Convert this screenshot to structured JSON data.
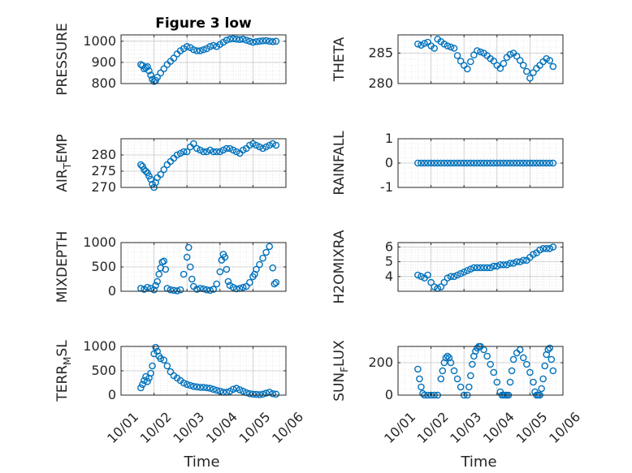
{
  "chart_data": [
    {
      "type": "scatter",
      "title": "Figure 3 low",
      "ylabel": "PRESSURE",
      "ylim": [
        800,
        1030
      ],
      "yticks": [
        800,
        900,
        1000
      ],
      "xlim": [
        "10/01",
        "10/06"
      ],
      "grid": true,
      "marker": "o",
      "color": "#0072BD",
      "x_days": [
        0.6,
        0.65,
        0.7,
        0.75,
        0.8,
        0.85,
        0.9,
        0.95,
        1.0,
        1.05,
        1.1,
        1.2,
        1.3,
        1.4,
        1.5,
        1.6,
        1.7,
        1.8,
        1.9,
        2.0,
        2.1,
        2.2,
        2.3,
        2.4,
        2.5,
        2.6,
        2.7,
        2.8,
        2.9,
        3.0,
        3.1,
        3.2,
        3.3,
        3.4,
        3.5,
        3.6,
        3.7,
        3.8,
        3.9,
        4.0,
        4.1,
        4.2,
        4.3,
        4.4,
        4.5,
        4.6,
        4.7
      ],
      "y": [
        890,
        885,
        870,
        875,
        880,
        860,
        840,
        820,
        810,
        815,
        830,
        850,
        870,
        890,
        905,
        920,
        940,
        955,
        965,
        975,
        970,
        960,
        955,
        955,
        960,
        965,
        975,
        980,
        975,
        985,
        995,
        1005,
        1010,
        1012,
        1010,
        1008,
        1010,
        1005,
        1000,
        995,
        998,
        1000,
        1002,
        1003,
        1000,
        998,
        1000
      ]
    },
    {
      "type": "scatter",
      "ylabel": "THETA",
      "ylim": [
        280,
        288
      ],
      "yticks": [
        280,
        285
      ],
      "xlim": [
        "10/01",
        "10/06"
      ],
      "grid": true,
      "marker": "o",
      "color": "#0072BD",
      "x_days": [
        0.6,
        0.7,
        0.8,
        0.9,
        1.0,
        1.1,
        1.2,
        1.3,
        1.4,
        1.5,
        1.6,
        1.7,
        1.8,
        1.9,
        2.0,
        2.1,
        2.2,
        2.3,
        2.4,
        2.5,
        2.6,
        2.7,
        2.8,
        2.9,
        3.0,
        3.1,
        3.2,
        3.3,
        3.4,
        3.5,
        3.6,
        3.7,
        3.8,
        3.9,
        4.0,
        4.1,
        4.2,
        4.3,
        4.4,
        4.5,
        4.6,
        4.7
      ],
      "y": [
        286.5,
        286.3,
        286.6,
        286.8,
        286.2,
        285.8,
        287.3,
        286.9,
        286.5,
        286.2,
        286.0,
        285.8,
        284.6,
        283.7,
        283.0,
        282.4,
        283.6,
        284.7,
        285.4,
        285.2,
        285.0,
        284.6,
        284.1,
        283.7,
        283.0,
        282.5,
        283.3,
        284.3,
        284.8,
        285.0,
        284.5,
        283.8,
        283.0,
        282.0,
        280.9,
        281.8,
        282.5,
        283.0,
        283.6,
        284.1,
        283.8,
        282.8
      ]
    },
    {
      "type": "scatter",
      "ylabel": "AIR_TEMP",
      "ylim": [
        270,
        285
      ],
      "yticks": [
        270,
        275,
        280
      ],
      "xlim": [
        "10/01",
        "10/06"
      ],
      "grid": true,
      "marker": "o",
      "color": "#0072BD",
      "x_days": [
        0.6,
        0.65,
        0.7,
        0.75,
        0.8,
        0.85,
        0.9,
        0.95,
        1.0,
        1.05,
        1.1,
        1.2,
        1.3,
        1.4,
        1.5,
        1.6,
        1.7,
        1.8,
        1.9,
        2.0,
        2.1,
        2.2,
        2.3,
        2.4,
        2.5,
        2.6,
        2.7,
        2.8,
        2.9,
        3.0,
        3.1,
        3.2,
        3.3,
        3.4,
        3.5,
        3.6,
        3.7,
        3.8,
        3.9,
        4.0,
        4.1,
        4.2,
        4.3,
        4.4,
        4.5,
        4.6,
        4.7
      ],
      "y": [
        277.0,
        276.5,
        275.5,
        275.0,
        274.5,
        273.5,
        272.5,
        271.0,
        270.0,
        271.5,
        273.0,
        274.0,
        275.5,
        277.0,
        278.0,
        279.0,
        280.0,
        280.5,
        281.0,
        281.0,
        282.5,
        283.5,
        282.0,
        281.5,
        281.0,
        281.0,
        281.5,
        281.0,
        281.0,
        281.0,
        281.5,
        282.0,
        282.0,
        281.5,
        281.0,
        280.5,
        281.5,
        282.0,
        283.0,
        283.5,
        283.0,
        282.5,
        282.0,
        282.5,
        283.0,
        283.5,
        283.0
      ]
    },
    {
      "type": "scatter",
      "ylabel": "RAINFALL",
      "ylim": [
        -1,
        1
      ],
      "yticks": [
        -1,
        0,
        1
      ],
      "xlim": [
        "10/01",
        "10/06"
      ],
      "grid": true,
      "marker": "o",
      "color": "#0072BD",
      "x_days": [
        0.6,
        0.7,
        0.8,
        0.9,
        1.0,
        1.1,
        1.2,
        1.3,
        1.4,
        1.5,
        1.6,
        1.7,
        1.8,
        1.9,
        2.0,
        2.1,
        2.2,
        2.3,
        2.4,
        2.5,
        2.6,
        2.7,
        2.8,
        2.9,
        3.0,
        3.1,
        3.2,
        3.3,
        3.4,
        3.5,
        3.6,
        3.7,
        3.8,
        3.9,
        4.0,
        4.1,
        4.2,
        4.3,
        4.4,
        4.5,
        4.6,
        4.7
      ],
      "y": [
        0,
        0,
        0,
        0,
        0,
        0,
        0,
        0,
        0,
        0,
        0,
        0,
        0,
        0,
        0,
        0,
        0,
        0,
        0,
        0,
        0,
        0,
        0,
        0,
        0,
        0,
        0,
        0,
        0,
        0,
        0,
        0,
        0,
        0,
        0,
        0,
        0,
        0,
        0,
        0,
        0,
        0
      ]
    },
    {
      "type": "scatter",
      "ylabel": "MIXDEPTH",
      "ylim": [
        0,
        1000
      ],
      "yticks": [
        0,
        500,
        1000
      ],
      "xlim": [
        "10/01",
        "10/06"
      ],
      "grid": true,
      "marker": "o",
      "color": "#0072BD",
      "x_days": [
        0.6,
        0.7,
        0.8,
        0.9,
        1.0,
        1.05,
        1.1,
        1.15,
        1.2,
        1.25,
        1.3,
        1.35,
        1.4,
        1.5,
        1.6,
        1.7,
        1.8,
        1.9,
        2.0,
        2.05,
        2.1,
        2.15,
        2.2,
        2.3,
        2.4,
        2.5,
        2.6,
        2.7,
        2.8,
        2.9,
        3.0,
        3.05,
        3.1,
        3.15,
        3.2,
        3.25,
        3.3,
        3.4,
        3.5,
        3.6,
        3.7,
        3.8,
        3.9,
        4.0,
        4.05,
        4.1,
        4.2,
        4.3,
        4.4,
        4.5,
        4.6,
        4.65,
        4.7
      ],
      "y": [
        60,
        40,
        80,
        60,
        30,
        120,
        200,
        350,
        480,
        600,
        620,
        450,
        60,
        30,
        20,
        10,
        30,
        350,
        700,
        900,
        500,
        250,
        100,
        40,
        60,
        50,
        30,
        20,
        40,
        150,
        400,
        640,
        760,
        700,
        450,
        200,
        120,
        80,
        50,
        60,
        80,
        100,
        180,
        300,
        350,
        450,
        550,
        680,
        800,
        920,
        480,
        150,
        180
      ]
    },
    {
      "type": "scatter",
      "ylabel": "H2OMIXRA",
      "ylim": [
        3,
        6.3
      ],
      "yticks": [
        4,
        5,
        6
      ],
      "xlim": [
        "10/01",
        "10/06"
      ],
      "grid": true,
      "marker": "o",
      "color": "#0072BD",
      "x_days": [
        0.6,
        0.7,
        0.8,
        0.9,
        1.0,
        1.1,
        1.2,
        1.3,
        1.4,
        1.5,
        1.6,
        1.7,
        1.8,
        1.9,
        2.0,
        2.1,
        2.2,
        2.3,
        2.4,
        2.5,
        2.6,
        2.7,
        2.8,
        2.9,
        3.0,
        3.1,
        3.2,
        3.3,
        3.4,
        3.5,
        3.6,
        3.7,
        3.8,
        3.9,
        4.0,
        4.1,
        4.2,
        4.3,
        4.4,
        4.5,
        4.6,
        4.7
      ],
      "y": [
        4.1,
        4.0,
        3.9,
        4.1,
        3.6,
        3.3,
        3.2,
        3.3,
        3.6,
        3.9,
        4.0,
        4.0,
        4.1,
        4.2,
        4.3,
        4.4,
        4.5,
        4.6,
        4.6,
        4.6,
        4.6,
        4.6,
        4.6,
        4.7,
        4.7,
        4.8,
        4.8,
        4.8,
        4.9,
        4.9,
        5.0,
        5.0,
        5.1,
        5.1,
        5.3,
        5.5,
        5.6,
        5.8,
        5.9,
        5.9,
        5.9,
        6.0
      ]
    },
    {
      "type": "scatter",
      "ylabel": "TERR_MSL",
      "ylim": [
        0,
        1000
      ],
      "yticks": [
        0,
        500,
        1000
      ],
      "xlim": [
        "10/01",
        "10/06"
      ],
      "grid": true,
      "marker": "o",
      "color": "#0072BD",
      "x_days": [
        0.6,
        0.65,
        0.7,
        0.75,
        0.8,
        0.85,
        0.9,
        0.95,
        1.0,
        1.05,
        1.1,
        1.15,
        1.2,
        1.3,
        1.4,
        1.5,
        1.6,
        1.7,
        1.8,
        1.9,
        2.0,
        2.1,
        2.2,
        2.3,
        2.4,
        2.5,
        2.6,
        2.7,
        2.8,
        2.9,
        3.0,
        3.1,
        3.2,
        3.3,
        3.4,
        3.5,
        3.6,
        3.7,
        3.8,
        3.9,
        4.0,
        4.1,
        4.2,
        4.3,
        4.4,
        4.5,
        4.6,
        4.7
      ],
      "y": [
        150,
        220,
        300,
        380,
        280,
        350,
        450,
        600,
        850,
        980,
        900,
        800,
        750,
        720,
        600,
        480,
        400,
        350,
        300,
        250,
        220,
        200,
        180,
        170,
        160,
        160,
        150,
        140,
        120,
        100,
        80,
        60,
        60,
        80,
        120,
        140,
        110,
        80,
        50,
        30,
        20,
        15,
        10,
        20,
        40,
        60,
        30,
        20
      ]
    },
    {
      "type": "scatter",
      "ylabel": "SUN_FLUX",
      "ylim": [
        0,
        300
      ],
      "yticks": [
        0,
        200
      ],
      "xlim": [
        "10/01",
        "10/06"
      ],
      "grid": true,
      "marker": "o",
      "color": "#0072BD",
      "x_days": [
        0.6,
        0.65,
        0.7,
        0.75,
        0.8,
        0.9,
        1.0,
        1.1,
        1.2,
        1.3,
        1.35,
        1.4,
        1.45,
        1.5,
        1.55,
        1.6,
        1.7,
        1.8,
        1.9,
        2.0,
        2.1,
        2.15,
        2.2,
        2.25,
        2.3,
        2.35,
        2.4,
        2.45,
        2.5,
        2.6,
        2.7,
        2.8,
        2.9,
        3.0,
        3.1,
        3.15,
        3.2,
        3.25,
        3.3,
        3.35,
        3.4,
        3.45,
        3.5,
        3.6,
        3.7,
        3.8,
        3.9,
        4.0,
        4.1,
        4.15,
        4.2,
        4.25,
        4.3,
        4.35,
        4.4,
        4.45,
        4.5,
        4.55,
        4.6,
        4.65,
        4.7
      ],
      "y": [
        160,
        100,
        50,
        10,
        0,
        0,
        0,
        0,
        0,
        100,
        150,
        200,
        230,
        240,
        230,
        200,
        150,
        100,
        50,
        0,
        0,
        50,
        120,
        190,
        240,
        270,
        290,
        300,
        300,
        280,
        240,
        190,
        140,
        80,
        20,
        0,
        0,
        0,
        0,
        0,
        80,
        150,
        220,
        260,
        280,
        230,
        190,
        140,
        80,
        20,
        0,
        0,
        0,
        40,
        100,
        180,
        250,
        280,
        290,
        220,
        150
      ]
    }
  ],
  "x_ticklabels": [
    "10/01",
    "10/02",
    "10/03",
    "10/04",
    "10/05",
    "10/06"
  ],
  "x_axis_label": "Time"
}
